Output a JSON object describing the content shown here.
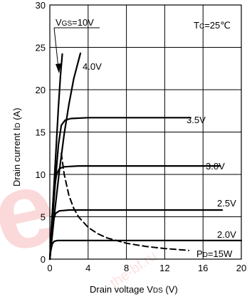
{
  "chart_data": {
    "type": "line",
    "title": "",
    "xlabel": {
      "main": "Drain voltage",
      "symbol_letter": "V",
      "symbol_sub": "DS",
      "unit": "(V)"
    },
    "ylabel": {
      "main": "Drain current",
      "symbol_letter": "I",
      "symbol_sub": "D",
      "unit": "(A)"
    },
    "xlim": [
      0,
      20
    ],
    "ylim": [
      0,
      30
    ],
    "x_ticks": [
      0,
      4,
      8,
      12,
      16,
      20
    ],
    "y_ticks": [
      0,
      5,
      10,
      15,
      20,
      25,
      30
    ],
    "grid": true,
    "condition": {
      "prefix": "T",
      "sub": "C",
      "value": "=25℃"
    },
    "series": [
      {
        "name": "VGS=10V",
        "label": {
          "letter": "V",
          "sub": "GS",
          "value": "=10V"
        },
        "x": [
          0,
          0.3,
          0.6,
          0.9,
          1.1,
          1.3
        ],
        "y": [
          0,
          6,
          12,
          18,
          21.5,
          24.2
        ]
      },
      {
        "name": "4.0V",
        "label": {
          "text": "4.0V"
        },
        "x": [
          0,
          0.5,
          1.0,
          1.5,
          2.0,
          2.5,
          3.2
        ],
        "y": [
          0,
          5.5,
          10.5,
          14.8,
          18.3,
          21.3,
          24.3
        ]
      },
      {
        "name": "3.5V",
        "label": {
          "text": "3.5V"
        },
        "x": [
          0,
          0.3,
          0.6,
          0.9,
          1.2,
          1.6,
          2.2,
          4,
          8,
          12,
          14.7
        ],
        "y": [
          0,
          5,
          9.5,
          13.5,
          15.8,
          16.4,
          16.6,
          16.7,
          16.7,
          16.7,
          16.7
        ]
      },
      {
        "name": "3.0V",
        "label": {
          "text": "3.0V"
        },
        "x": [
          0,
          0.2,
          0.4,
          0.7,
          1.0,
          1.5,
          3,
          8,
          12,
          16,
          17.8
        ],
        "y": [
          0,
          4.5,
          7.8,
          10.0,
          10.7,
          10.9,
          11.0,
          11.0,
          11.0,
          11.0,
          11.0
        ]
      },
      {
        "name": "2.5V",
        "label": {
          "text": "2.5V"
        },
        "x": [
          0,
          0.15,
          0.35,
          0.6,
          1.0,
          2,
          6,
          10,
          14,
          18
        ],
        "y": [
          0,
          2.6,
          4.5,
          5.4,
          5.7,
          5.8,
          5.8,
          5.8,
          5.8,
          5.8
        ]
      },
      {
        "name": "2.0V",
        "label": {
          "text": "2.0V"
        },
        "x": [
          0,
          0.1,
          0.25,
          0.45,
          0.8,
          2,
          6,
          10,
          14,
          18,
          20
        ],
        "y": [
          0,
          1.0,
          1.8,
          2.1,
          2.2,
          2.2,
          2.2,
          2.2,
          2.2,
          2.2,
          2.2
        ]
      },
      {
        "name": "PD=15W",
        "label": {
          "letter": "P",
          "sub": "D",
          "value": "=15W"
        },
        "dashed": true,
        "x": [
          1.2,
          1.5,
          2,
          2.5,
          3,
          4,
          5,
          6,
          8,
          10,
          12,
          14.5
        ],
        "y": [
          12.5,
          10,
          7.5,
          6,
          5,
          3.75,
          3,
          2.5,
          1.875,
          1.5,
          1.25,
          1.03
        ]
      }
    ]
  },
  "watermark": {
    "big": "e",
    "small": "the-bf.ru"
  }
}
